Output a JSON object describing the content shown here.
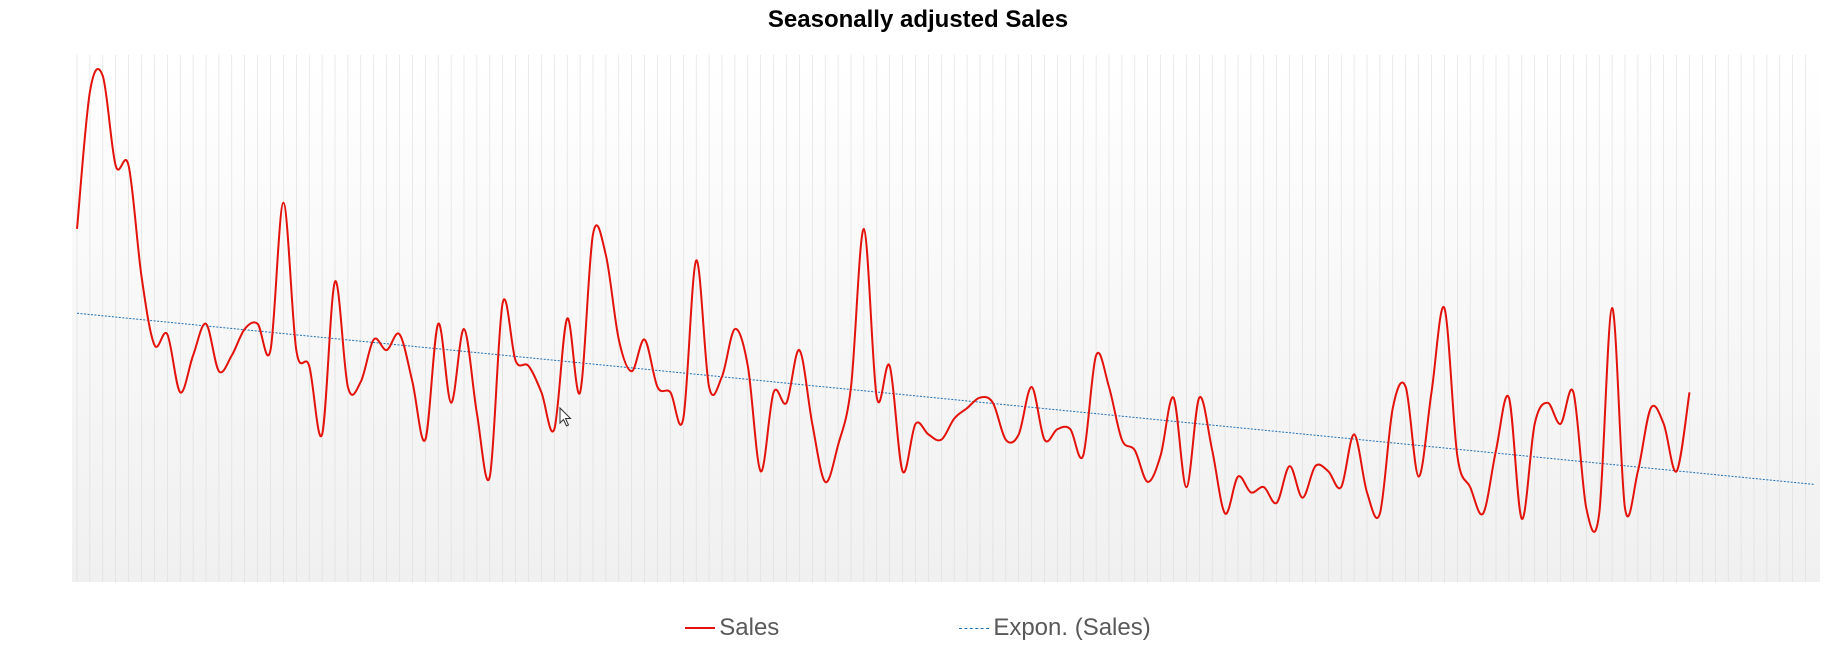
{
  "chart_data": {
    "type": "line",
    "title": "Seasonally adjusted Sales",
    "xlabel": "",
    "ylabel": "",
    "ylim": [
      0,
      100
    ],
    "grid": "vertical",
    "legend": "bottom",
    "series": [
      {
        "name": "Sales",
        "color": "#e3120b",
        "style": "smooth",
        "values": [
          67,
          93,
          96,
          79,
          79,
          58,
          45,
          47,
          36,
          43,
          49,
          40,
          43,
          48,
          49,
          44,
          72,
          44,
          41,
          28,
          57,
          37,
          38,
          46,
          44,
          47,
          38,
          27,
          49,
          34,
          48,
          32,
          20,
          53,
          42,
          41,
          36,
          29,
          50,
          36,
          66,
          62,
          46,
          40,
          46,
          37,
          36,
          31,
          61,
          37,
          39,
          48,
          41,
          21,
          36,
          34,
          44,
          30,
          19,
          26,
          37,
          67,
          35,
          41,
          21,
          30,
          28,
          27,
          31,
          33,
          35,
          34,
          27,
          28,
          37,
          27,
          29,
          29,
          24,
          43,
          37,
          27,
          25,
          19,
          24,
          35,
          18,
          35,
          25,
          13,
          20,
          17,
          18,
          15,
          22,
          16,
          22,
          21,
          18,
          28,
          17,
          13,
          33,
          37,
          20,
          36,
          52,
          24,
          18,
          13,
          25,
          35,
          12,
          30,
          34,
          30,
          36,
          14,
          13,
          52,
          14,
          21,
          33,
          30,
          21,
          36
        ]
      },
      {
        "name": "Expon. (Sales)",
        "color": "#1f6fb5",
        "style": "dashed",
        "start": 51,
        "end": 18.5
      }
    ]
  }
}
